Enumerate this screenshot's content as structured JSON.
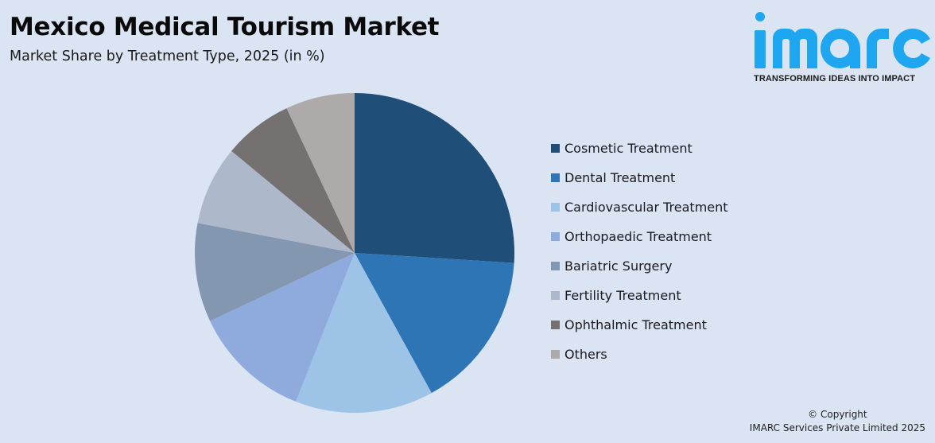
{
  "header": {
    "title": "Mexico Medical Tourism Market",
    "subtitle": "Market Share by Treatment Type, 2025 (in %)"
  },
  "logo": {
    "wordmark": "imarc",
    "tagline": "TRANSFORMING IDEAS INTO IMPACT",
    "color": "#1ea7f0"
  },
  "footer": {
    "line1": "© Copyright",
    "line2": "IMARC Services Private Limited 2025"
  },
  "chart_data": {
    "type": "pie",
    "title": "Mexico Medical Tourism Market",
    "subtitle": "Market Share by Treatment Type, 2025 (in %)",
    "start_angle": "12 o'clock, clockwise",
    "legend_position": "right",
    "categories": [
      "Cosmetic Treatment",
      "Dental Treatment",
      "Cardiovascular Treatment",
      "Orthopaedic Treatment",
      "Bariatric Surgery",
      "Fertility Treatment",
      "Ophthalmic Treatment",
      "Others"
    ],
    "values": [
      26,
      16,
      14,
      12,
      10,
      8,
      7,
      7
    ],
    "colors": [
      "#1f4e79",
      "#2e75b6",
      "#9dc3e6",
      "#8faadc",
      "#8497b0",
      "#adb9ca",
      "#767171",
      "#aeaaaa"
    ]
  },
  "legend": {
    "items": [
      {
        "label": "Cosmetic Treatment",
        "color": "#1f4e79"
      },
      {
        "label": "Dental Treatment",
        "color": "#2e75b6"
      },
      {
        "label": "Cardiovascular Treatment",
        "color": "#9dc3e6"
      },
      {
        "label": "Orthopaedic Treatment",
        "color": "#8faadc"
      },
      {
        "label": "Bariatric Surgery",
        "color": "#8497b0"
      },
      {
        "label": "Fertility Treatment",
        "color": "#adb9ca"
      },
      {
        "label": "Ophthalmic Treatment",
        "color": "#767171"
      },
      {
        "label": "Others",
        "color": "#aeaaaa"
      }
    ]
  }
}
